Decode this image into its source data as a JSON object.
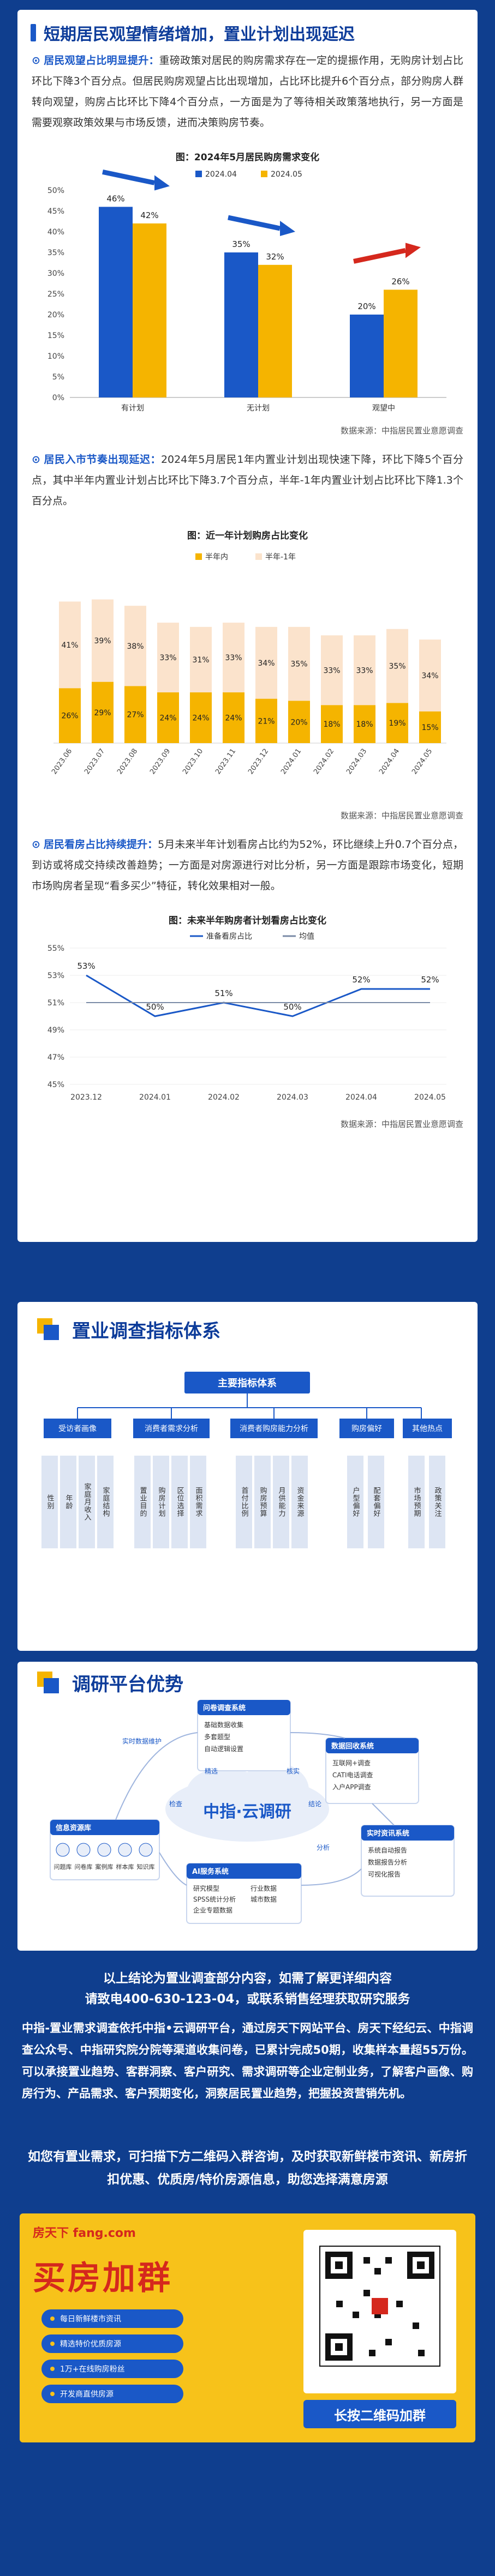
{
  "section1": {
    "title": "短期居民观望情绪增加，置业计划出现延迟",
    "p1_label": "居民观望占比明显提升：",
    "p1_text": "重磅政策对居民的购房需求存在一定的提振作用，无购房计划占比环比下降3个百分点。但居民购房观望占比出现增加，占比环比提升6个百分点，部分购房人群转向观望，购房占比环比下降4个百分点，一方面是为了等待相关政策落地执行，另一方面是需要观察政策效果与市场反馈，进而决策购房节奏。",
    "p2_label": "居民入市节奏出现延迟：",
    "p2_text": "2024年5月居民1年内置业计划出现快速下降，环比下降5个百分点，其中半年内置业计划占比环比下降3.7个百分点，半年-1年内置业计划占比环比下降1.3个百分点。",
    "p3_label": "居民看房占比持续提升：",
    "p3_text": "5月未来半年计划看房占比约为52%，环比继续上升0.7个百分点，到访或将成交持续改善趋势；一方面是对房源进行对比分析，另一方面是跟踪市场变化，短期市场购房者呈现“看多买少”特征，转化效果相对一般。",
    "source": "数据来源：中指居民置业意愿调查"
  },
  "chart_data": [
    {
      "type": "bar",
      "title": "图：2024年5月居民购房需求变化",
      "categories": [
        "有计划",
        "无计划",
        "观望中"
      ],
      "series": [
        {
          "name": "2024.04",
          "values": [
            46,
            35,
            20
          ],
          "color": "#1a58c7"
        },
        {
          "name": "2024.05",
          "values": [
            42,
            32,
            26
          ],
          "color": "#f5b400"
        }
      ],
      "data_labels": [
        [
          "46%",
          "42%"
        ],
        [
          "35%",
          "32%"
        ],
        [
          "20%",
          "26%"
        ]
      ],
      "y_ticks": [
        "0%",
        "5%",
        "10%",
        "15%",
        "20%",
        "25%",
        "30%",
        "35%",
        "40%",
        "45%",
        "50%"
      ],
      "ylim": [
        0,
        50
      ],
      "legend": "top"
    },
    {
      "type": "bar",
      "title": "图：近一年计划购房占比变化",
      "stacked": true,
      "categories": [
        "2023.06",
        "2023.07",
        "2023.08",
        "2023.09",
        "2023.10",
        "2023.11",
        "2023.12",
        "2024.01",
        "2024.02",
        "2024.03",
        "2024.04",
        "2024.05"
      ],
      "series": [
        {
          "name": "半年内",
          "values": [
            26,
            29,
            27,
            24,
            24,
            24,
            21,
            20,
            18,
            18,
            19,
            15
          ],
          "color": "#f5b400"
        },
        {
          "name": "半年-1年",
          "values": [
            41,
            39,
            38,
            33,
            31,
            33,
            34,
            35,
            33,
            33,
            35,
            34
          ],
          "color": "#fbe3cc"
        }
      ],
      "legend": "top"
    },
    {
      "type": "line",
      "title": "图：未来半年购房者计划看房占比变化",
      "x": [
        "2023.12",
        "2024.01",
        "2024.02",
        "2024.03",
        "2024.04",
        "2024.05"
      ],
      "series": [
        {
          "name": "准备看房占比",
          "values": [
            53,
            50,
            51,
            50,
            52,
            52
          ],
          "color": "#1a58c7"
        },
        {
          "name": "均值",
          "values": [
            51,
            51,
            51,
            51,
            51,
            51
          ],
          "color": "#7a8aa6"
        }
      ],
      "data_labels": [
        "53%",
        "50%",
        "51%",
        "50%",
        "52%",
        "52%"
      ],
      "y_ticks": [
        "45%",
        "47%",
        "49%",
        "51%",
        "53%",
        "55%"
      ],
      "ylim": [
        45,
        55
      ],
      "legend": "top"
    }
  ],
  "section2": {
    "title": "置业调查指标体系",
    "root": "主要指标体系",
    "groups": [
      {
        "label": "受访者画像",
        "leaves": [
          "性别",
          "年龄",
          "家庭月收入",
          "家庭结构"
        ]
      },
      {
        "label": "消费者需求分析",
        "leaves": [
          "置业目的",
          "购房计划",
          "区位选择",
          "面积需求"
        ]
      },
      {
        "label": "消费者购房能力分析",
        "leaves": [
          "首付比例",
          "购房预算",
          "月供能力",
          "资金来源"
        ]
      },
      {
        "label": "购房偏好",
        "leaves": [
          "户型偏好",
          "配套偏好"
        ]
      },
      {
        "label": "其他热点",
        "leaves": [
          "市场预期",
          "政策关注"
        ]
      }
    ]
  },
  "section3": {
    "title": "调研平台优势",
    "center": "中指·云调研",
    "nodes": [
      {
        "title": "问卷调查系统",
        "items": [
          "基础数据收集",
          "多套题型",
          "自动逻辑设置"
        ]
      },
      {
        "title": "数据回收系统",
        "items": [
          "互联网+调查",
          "CATI电话调查",
          "入户APP调查"
        ]
      },
      {
        "title": "信息资源库",
        "items": [
          "问题库",
          "问卷库",
          "案例库",
          "样本库",
          "知识库"
        ]
      },
      {
        "title": "AI服务系统",
        "items": [
          "研究模型",
          "行业数据",
          "SPSS统计分析",
          "城市数据",
          "企业专题数据"
        ]
      },
      {
        "title": "实时资讯系统",
        "items": [
          "系统自动报告",
          "数据报告分析",
          "可视化报告"
        ]
      }
    ],
    "arrows": [
      "实时数据维护",
      "检查",
      "精选",
      "核实",
      "结论",
      "分析"
    ]
  },
  "footer": {
    "line1": "以上结论为置业调查部分内容，如需了解更详细内容",
    "line2": "请致电400-630-123-04，或联系销售经理获取研究服务",
    "desc": "中指-置业需求调查依托中指•云调研平台，通过房天下网站平台、房天下经纪云、中指调查公众号、中指研究院分院等渠道收集问卷，已累计完成50期，收集样本量超55万份。可以承接置业趋势、客群洞察、客户研究、需求调研等企业定制业务，了解客户画像、购房行为、产品需求、客户预期变化，洞察居民置业趋势，把握投资营销先机。",
    "invite": "如您有置业需求，可扫描下方二维码入群咨询，及时获取新鲜楼市资讯、新房折扣优惠、优质房/特价房源信息，助您选择满意房源"
  },
  "promo": {
    "logo": "房天下 fang.com",
    "headline": "买房加群",
    "tags": [
      "每日新鲜楼市资讯",
      "精选特价优质房源",
      "1万+在线购房粉丝",
      "开发商直供房源"
    ],
    "qr_button": "长按二维码加群"
  }
}
